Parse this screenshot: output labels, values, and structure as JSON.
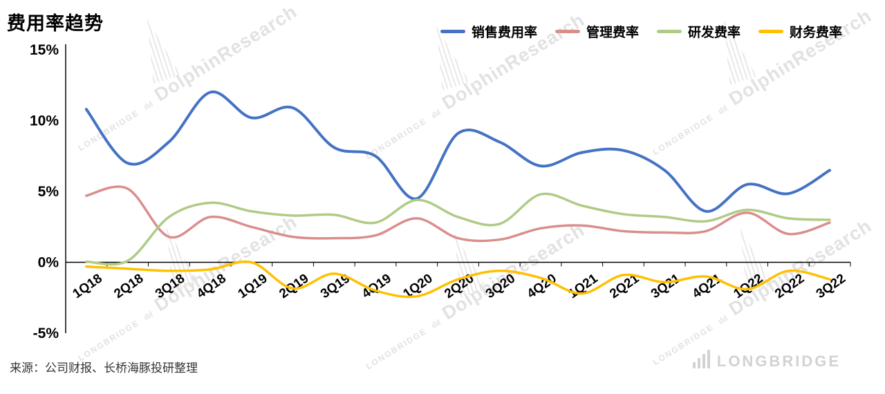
{
  "title": "费用率趋势",
  "source": "来源：公司财报、长桥海豚投研整理",
  "logo_text": "LONGBRIDGE",
  "watermark": {
    "brand": "LONGBRIDGE",
    "name": "DolphinResearch"
  },
  "icons": {
    "bars_glyph": "ılıl"
  },
  "chart_data": {
    "type": "line",
    "title": "费用率趋势",
    "categories": [
      "1Q18",
      "2Q18",
      "3Q18",
      "4Q18",
      "1Q19",
      "2Q19",
      "3Q19",
      "4Q19",
      "1Q20",
      "2Q20",
      "3Q20",
      "4Q20",
      "1Q21",
      "2Q21",
      "3Q21",
      "4Q21",
      "1Q22",
      "2Q22",
      "3Q22"
    ],
    "series": [
      {
        "name": "销售费用率",
        "color": "#4472C4",
        "values": [
          10.8,
          7.0,
          8.5,
          12.0,
          10.2,
          10.9,
          8.1,
          7.5,
          4.5,
          9.1,
          8.5,
          6.8,
          7.75,
          7.9,
          6.5,
          3.6,
          5.5,
          4.85,
          6.5
        ]
      },
      {
        "name": "管理费率",
        "color": "#D98E8C",
        "values": [
          4.7,
          5.2,
          1.8,
          3.2,
          2.5,
          1.8,
          1.7,
          1.9,
          3.1,
          1.7,
          1.6,
          2.4,
          2.6,
          2.2,
          2.1,
          2.2,
          3.5,
          2.0,
          2.8
        ]
      },
      {
        "name": "研发费率",
        "color": "#AFCB85",
        "values": [
          0.05,
          0.1,
          3.2,
          4.2,
          3.6,
          3.3,
          3.35,
          2.8,
          4.4,
          3.2,
          2.7,
          4.8,
          4.0,
          3.4,
          3.2,
          2.9,
          3.7,
          3.1,
          3.0
        ]
      },
      {
        "name": "财务费率",
        "color": "#FFC000",
        "values": [
          -0.3,
          -0.45,
          -0.6,
          -0.5,
          0.0,
          -1.85,
          -0.8,
          -2.0,
          -2.4,
          -1.2,
          -0.6,
          -1.1,
          -2.2,
          -0.9,
          -1.4,
          -1.0,
          -1.9,
          -0.6,
          -1.2
        ]
      }
    ],
    "ylim": [
      -5,
      15
    ],
    "ytick_step": 5,
    "ytick_labels": [
      "15%",
      "10%",
      "5%",
      "0%",
      "-5%"
    ],
    "legend_position": "top",
    "grid": false,
    "xlabel": "",
    "ylabel": ""
  }
}
